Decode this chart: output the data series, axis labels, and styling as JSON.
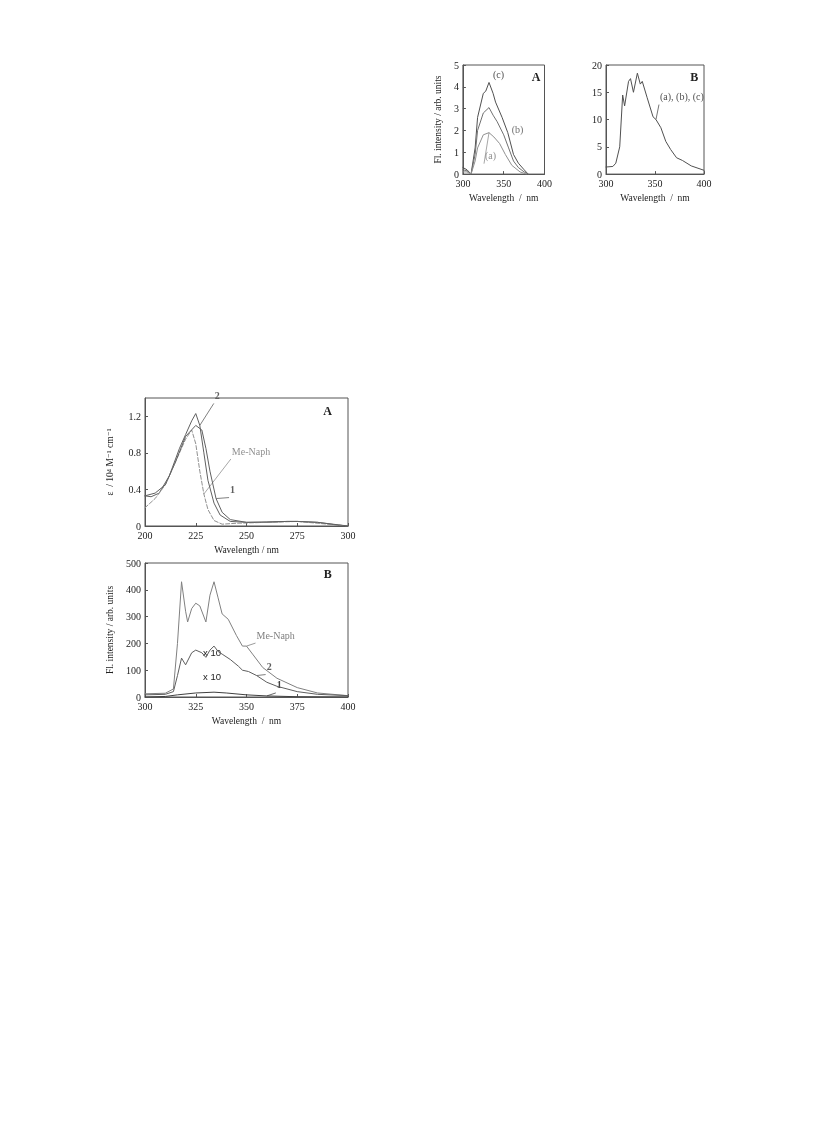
{
  "chart_data": [
    {
      "type": "line",
      "xlabel": "Wavelength  /  nm",
      "ylabel": "Fl. intensity / arb. units",
      "xlim": [
        300,
        400
      ],
      "xticks": [
        300,
        350,
        400
      ],
      "ylim": [
        0,
        5
      ],
      "yticks": [
        0,
        1,
        2,
        3,
        4,
        5
      ],
      "grid": false,
      "legend": false,
      "annotations": [
        "A"
      ],
      "series": [
        {
          "name": "(c)",
          "color": "#505050",
          "x": [
            300,
            305,
            310,
            315,
            318,
            325,
            328,
            332,
            337,
            340,
            348,
            355,
            362,
            368,
            375,
            380
          ],
          "values": [
            0.3,
            0.2,
            0,
            1.2,
            2.6,
            3.7,
            3.8,
            4.2,
            3.7,
            3.3,
            2.6,
            1.9,
            0.9,
            0.5,
            0.2,
            0
          ]
        },
        {
          "name": "(b)",
          "color": "#707070",
          "x": [
            300,
            305,
            310,
            315,
            318,
            325,
            332,
            337,
            342,
            350,
            356,
            362,
            368,
            375,
            380
          ],
          "values": [
            0.2,
            0.15,
            0,
            0.9,
            2.0,
            2.8,
            3.05,
            2.7,
            2.4,
            1.8,
            1.2,
            0.6,
            0.3,
            0.1,
            0
          ]
        },
        {
          "name": "(a)",
          "color": "#909090",
          "x": [
            300,
            305,
            310,
            315,
            318,
            325,
            332,
            338,
            345,
            352,
            360,
            370,
            378
          ],
          "values": [
            0.1,
            0.1,
            0,
            0.6,
            1.2,
            1.8,
            1.9,
            1.7,
            1.4,
            0.9,
            0.4,
            0.1,
            0
          ]
        }
      ]
    },
    {
      "type": "line",
      "xlabel": "Wavelength  /  nm",
      "xlim": [
        300,
        400
      ],
      "xticks": [
        300,
        350,
        400
      ],
      "ylim": [
        0,
        20
      ],
      "yticks": [
        0,
        5,
        10,
        15,
        20
      ],
      "grid": false,
      "legend": false,
      "annotations": [
        "B"
      ],
      "series": [
        {
          "name": "(a), (b), (c)",
          "color": "#505050",
          "x": [
            300,
            307,
            310,
            314,
            317,
            319,
            323,
            325,
            328,
            332,
            335,
            337,
            342,
            348,
            351,
            356,
            361,
            366,
            372,
            378,
            387,
            400
          ],
          "values": [
            1.3,
            1.4,
            2,
            5,
            14.5,
            12.5,
            17,
            17.5,
            15,
            18.5,
            16.5,
            17,
            14,
            10.5,
            10,
            8.5,
            6,
            4.5,
            3,
            2.5,
            1.5,
            0.7
          ]
        }
      ]
    },
    {
      "type": "line",
      "xlabel": "Wavelength / nm",
      "ylabel": "ε  / 10⁴ M⁻¹ cm⁻¹",
      "xlim": [
        200,
        300
      ],
      "xticks": [
        200,
        225,
        250,
        275,
        300
      ],
      "ylim": [
        0,
        1.4
      ],
      "yticks": [
        0,
        0.4,
        0.8,
        1.2
      ],
      "grid": false,
      "legend": false,
      "annotations": [
        "A"
      ],
      "series": [
        {
          "name": "2",
          "color": "#606060",
          "line_style": "solid",
          "x": [
            200,
            203,
            207,
            212,
            217,
            220,
            223,
            225,
            227,
            229,
            231,
            234,
            237,
            242,
            250,
            260,
            270,
            275,
            285,
            295,
            300
          ],
          "values": [
            0.33,
            0.32,
            0.36,
            0.55,
            0.85,
            1.0,
            1.15,
            1.23,
            1.1,
            0.8,
            0.5,
            0.25,
            0.12,
            0.05,
            0.04,
            0.04,
            0.05,
            0.05,
            0.04,
            0.01,
            0
          ]
        },
        {
          "name": "Me-Naph",
          "color": "#909090",
          "line_style": "dashed",
          "x": [
            200,
            205,
            210,
            215,
            220,
            223,
            225,
            227,
            229,
            231,
            234,
            238,
            245,
            260,
            275,
            300
          ],
          "values": [
            0.2,
            0.3,
            0.45,
            0.7,
            0.95,
            1.05,
            0.9,
            0.6,
            0.35,
            0.18,
            0.06,
            0.02,
            0.03,
            0.04,
            0.05,
            0
          ]
        },
        {
          "name": "1",
          "color": "#606060",
          "line_style": "solid",
          "x": [
            200,
            205,
            210,
            215,
            220,
            225,
            228,
            230,
            232,
            235,
            238,
            242,
            250,
            270,
            275,
            285,
            300
          ],
          "values": [
            0.33,
            0.36,
            0.45,
            0.7,
            0.98,
            1.1,
            1.05,
            0.85,
            0.6,
            0.3,
            0.15,
            0.07,
            0.04,
            0.05,
            0.05,
            0.04,
            0
          ]
        }
      ]
    },
    {
      "type": "line",
      "xlabel": "Wavelength  /  nm",
      "ylabel": "Fl. intensity / arb. units",
      "xlim": [
        300,
        400
      ],
      "xticks": [
        300,
        325,
        350,
        375,
        400
      ],
      "ylim": [
        0,
        500
      ],
      "yticks": [
        0,
        100,
        200,
        300,
        400,
        500
      ],
      "grid": false,
      "legend": false,
      "annotations": [
        "B",
        "x 10",
        "x 10"
      ],
      "series": [
        {
          "name": "Me-Naph",
          "color": "#808080",
          "x": [
            300,
            310,
            314,
            316,
            318,
            320,
            321,
            323,
            325,
            327,
            330,
            332,
            334,
            336,
            338,
            341,
            345,
            348,
            350,
            353,
            358,
            365,
            375,
            385,
            400
          ],
          "values": [
            12,
            14,
            30,
            200,
            430,
            320,
            280,
            330,
            350,
            340,
            280,
            380,
            430,
            370,
            310,
            290,
            230,
            190,
            190,
            160,
            110,
            70,
            35,
            15,
            5
          ]
        },
        {
          "name": "2",
          "color": "#5e5e5e",
          "x": [
            300,
            310,
            314,
            316,
            318,
            320,
            323,
            325,
            328,
            330,
            332,
            334,
            336,
            338,
            342,
            346,
            348,
            351,
            355,
            360,
            365,
            375,
            385,
            400
          ],
          "values": [
            8,
            10,
            20,
            80,
            145,
            120,
            165,
            175,
            165,
            148,
            175,
            190,
            170,
            160,
            140,
            115,
            100,
            95,
            80,
            55,
            40,
            20,
            10,
            5
          ]
        },
        {
          "name": "1",
          "color": "#404040",
          "x": [
            300,
            310,
            316,
            325,
            334,
            340,
            350,
            360,
            375,
            400
          ],
          "values": [
            0,
            2,
            8,
            15,
            18,
            15,
            8,
            4,
            1,
            0
          ]
        }
      ]
    }
  ]
}
